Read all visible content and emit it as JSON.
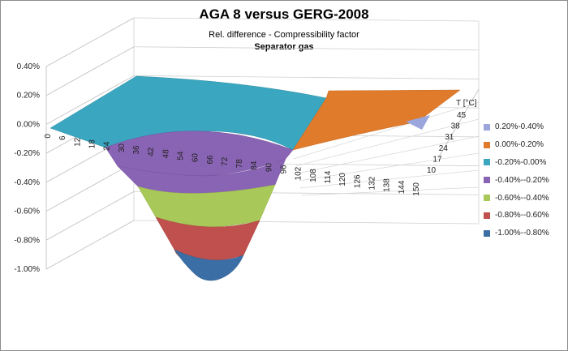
{
  "chart_data": {
    "type": "surface",
    "title": "AGA 8 versus GERG-2008",
    "subtitle": "Rel. difference - Compressibility factor",
    "subtitle2": "Separator gas",
    "z_axis": {
      "ticks": [
        "0.40%",
        "0.20%",
        "0.00%",
        "-0.20%",
        "-0.40%",
        "-0.60%",
        "-0.80%",
        "-1.00%"
      ],
      "range": [
        -1.0,
        0.4
      ],
      "unit": "%"
    },
    "x_axis": {
      "ticks": [
        "0",
        "6",
        "12",
        "18",
        "24",
        "30",
        "36",
        "42",
        "48",
        "54",
        "60",
        "66",
        "72",
        "78",
        "84",
        "90",
        "96",
        "102",
        "108",
        "114",
        "120",
        "126",
        "132",
        "138",
        "144",
        "150"
      ],
      "range": [
        0,
        150
      ]
    },
    "y_axis": {
      "label": "T [°C]",
      "ticks": [
        "10",
        "17",
        "24",
        "31",
        "38",
        "45"
      ],
      "range": [
        10,
        45
      ]
    },
    "grid": true,
    "legend_position": "right",
    "legend": [
      {
        "label": "0.20%-0.40%",
        "color": "#9aa6dc"
      },
      {
        "label": "0.00%-0.20%",
        "color": "#e07b2c"
      },
      {
        "label": "-0.20%-0.00%",
        "color": "#3aa6c0"
      },
      {
        "label": "-0.40%--0.20%",
        "color": "#8a64b4"
      },
      {
        "label": "-0.60%--0.40%",
        "color": "#a8c85a"
      },
      {
        "label": "-0.80%--0.60%",
        "color": "#c0504d"
      },
      {
        "label": "-1.00%--0.80%",
        "color": "#3b6ea5"
      }
    ],
    "surface_samples": {
      "description_units": "x pressure-axis value, y temperature °C, z relative difference %",
      "points": [
        {
          "x": 0,
          "y": 10,
          "z": 0.0
        },
        {
          "x": 36,
          "y": 10,
          "z": -0.2
        },
        {
          "x": 54,
          "y": 10,
          "z": -0.55
        },
        {
          "x": 66,
          "y": 10,
          "z": -0.95
        },
        {
          "x": 84,
          "y": 10,
          "z": -0.45
        },
        {
          "x": 102,
          "y": 10,
          "z": 0.0
        },
        {
          "x": 150,
          "y": 10,
          "z": 0.12
        },
        {
          "x": 0,
          "y": 45,
          "z": 0.0
        },
        {
          "x": 150,
          "y": 45,
          "z": 0.05
        }
      ]
    }
  }
}
